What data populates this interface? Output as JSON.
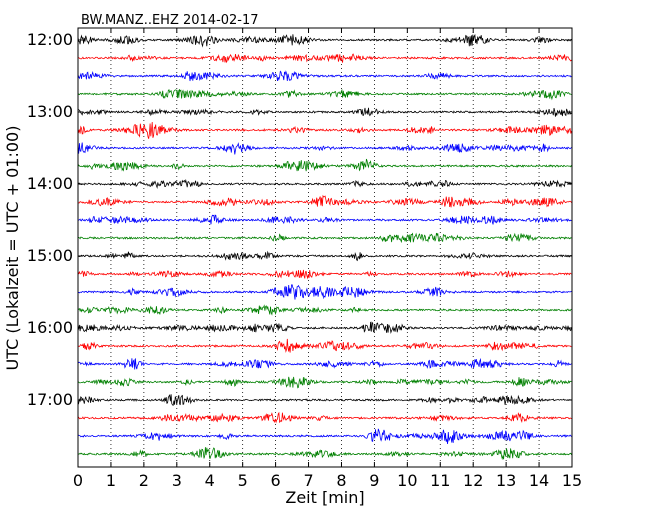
{
  "chart_data": {
    "type": "line",
    "title": "BW.MANZ..EHZ 2014-02-17",
    "xlabel": "Zeit  [min]",
    "ylabel": "UTC (Lokalzeit = UTC + 01:00)",
    "xlim": [
      0,
      15
    ],
    "x_ticks": [
      "0",
      "1",
      "2",
      "3",
      "4",
      "5",
      "6",
      "7",
      "8",
      "9",
      "10",
      "11",
      "12",
      "13",
      "14",
      "15"
    ],
    "y_ticks": [
      "12:00",
      "13:00",
      "14:00",
      "15:00",
      "16:00",
      "17:00"
    ],
    "trace_interval_min": 15,
    "trace_count": 24,
    "trace_colors": [
      "#000000",
      "#ff0000",
      "#0000ff",
      "#008000"
    ],
    "grid": "vertical dotted",
    "legend": "none"
  }
}
